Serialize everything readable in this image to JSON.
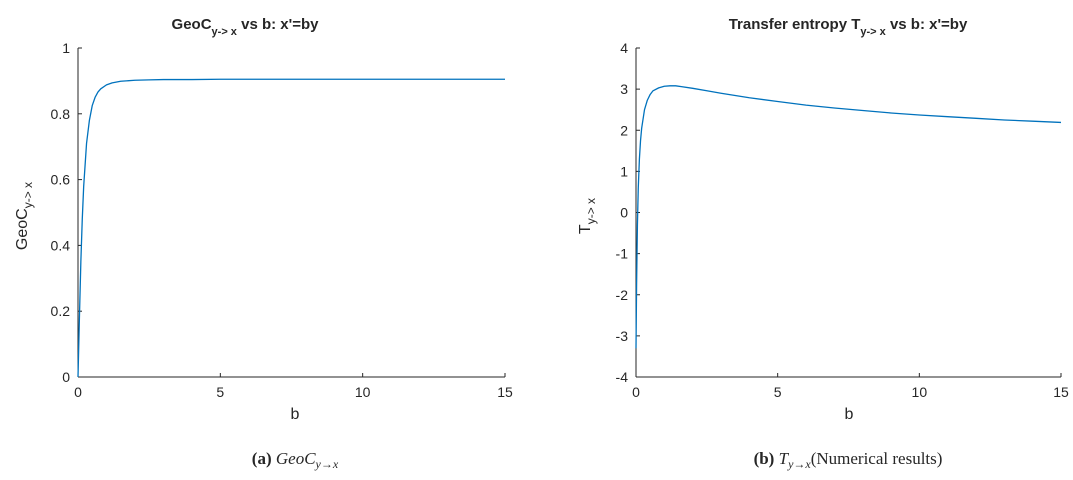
{
  "colors": {
    "line": "#0072BD",
    "axis": "#262626",
    "background": "#ffffff"
  },
  "chart_data": [
    {
      "type": "line",
      "title": {
        "main": "GeoC",
        "sub": "y-> x",
        "rest": " vs b: x'=by"
      },
      "xlabel": "b",
      "ylabel": {
        "main": "GeoC",
        "sub": "y-> x"
      },
      "xlim": [
        0,
        15
      ],
      "ylim": [
        0,
        1
      ],
      "xticks": [
        0,
        5,
        10,
        15
      ],
      "xtick_labels": [
        "0",
        "5",
        "10",
        "15"
      ],
      "yticks": [
        0,
        0.2,
        0.4,
        0.6,
        0.8,
        1
      ],
      "ytick_labels": [
        "0",
        "0.2",
        "0.4",
        "0.6",
        "0.8",
        "1"
      ],
      "grid": false,
      "series": [
        {
          "x": [
            0,
            0.05,
            0.1,
            0.15,
            0.2,
            0.3,
            0.4,
            0.5,
            0.6,
            0.7,
            0.8,
            1.0,
            1.2,
            1.5,
            2.0,
            2.5,
            3,
            4,
            5,
            7,
            10,
            12.5,
            15
          ],
          "y": [
            0,
            0.18,
            0.35,
            0.48,
            0.58,
            0.71,
            0.78,
            0.825,
            0.85,
            0.866,
            0.876,
            0.888,
            0.894,
            0.899,
            0.902,
            0.903,
            0.904,
            0.904,
            0.905,
            0.905,
            0.905,
            0.905,
            0.905
          ]
        }
      ],
      "caption": {
        "label": "(a)",
        "main": "GeoC",
        "sub": "y→x",
        "rest": ""
      }
    },
    {
      "type": "line",
      "title": {
        "main": "Transfer entropy T",
        "sub": "y-> x",
        "rest": " vs b: x'=by"
      },
      "xlabel": "b",
      "ylabel": {
        "main": "T",
        "sub": "y-> x"
      },
      "xlim": [
        0,
        15
      ],
      "ylim": [
        -4,
        4
      ],
      "xticks": [
        0,
        5,
        10,
        15
      ],
      "xtick_labels": [
        "0",
        "5",
        "10",
        "15"
      ],
      "yticks": [
        -4,
        -3,
        -2,
        -1,
        0,
        1,
        2,
        3,
        4
      ],
      "ytick_labels": [
        "-4",
        "-3",
        "-2",
        "-1",
        "0",
        "1",
        "2",
        "3",
        "4"
      ],
      "grid": false,
      "series": [
        {
          "x": [
            0,
            0.02,
            0.05,
            0.08,
            0.12,
            0.16,
            0.2,
            0.3,
            0.4,
            0.5,
            0.6,
            0.8,
            1.0,
            1.2,
            1.4,
            1.6,
            2.0,
            2.5,
            3,
            4,
            5,
            6,
            7,
            8,
            9,
            10,
            11,
            12,
            13,
            14,
            15
          ],
          "y": [
            -3.3,
            -1.8,
            -0.3,
            0.6,
            1.3,
            1.75,
            2.05,
            2.5,
            2.73,
            2.87,
            2.96,
            3.03,
            3.07,
            3.08,
            3.08,
            3.06,
            3.02,
            2.96,
            2.9,
            2.79,
            2.7,
            2.61,
            2.54,
            2.48,
            2.42,
            2.37,
            2.33,
            2.29,
            2.25,
            2.22,
            2.19
          ]
        }
      ],
      "caption": {
        "label": "(b)",
        "main": "T",
        "sub": "y→x",
        "rest": "(Numerical results)"
      }
    }
  ]
}
